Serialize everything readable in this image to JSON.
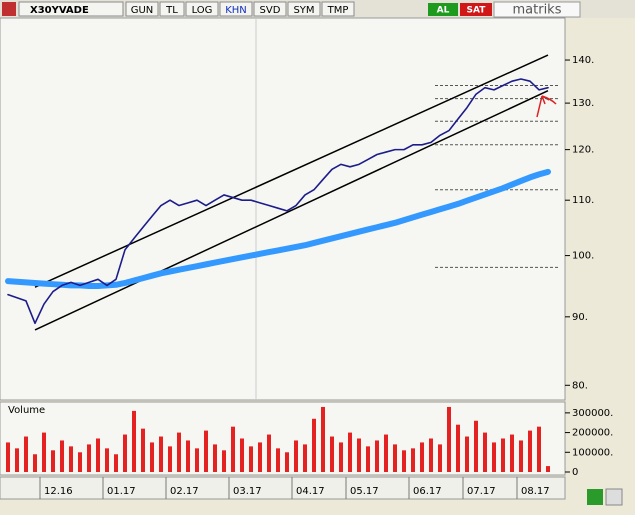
{
  "toolbar": {
    "symbol": "X30YVADE",
    "buttons": [
      "GUN",
      "TL",
      "LOG",
      "KHN",
      "SVD",
      "SYM",
      "TMP"
    ],
    "buy": "AL",
    "sell": "SAT",
    "brand": "matriks"
  },
  "chart_data": [
    {
      "type": "line",
      "log_scale": true,
      "categories": [
        null,
        null,
        null,
        null,
        "12.16",
        null,
        null,
        null,
        null,
        null,
        null,
        "01.17",
        null,
        null,
        null,
        null,
        null,
        null,
        "02.17",
        null,
        null,
        null,
        null,
        null,
        null,
        "03.17",
        null,
        null,
        null,
        null,
        null,
        null,
        "04.17",
        null,
        null,
        null,
        null,
        null,
        "05.17",
        null,
        null,
        null,
        null,
        null,
        null,
        "06.17",
        null,
        null,
        null,
        null,
        null,
        "07.17",
        null,
        null,
        null,
        null,
        null,
        "08.17",
        null,
        null,
        null
      ],
      "series": [
        {
          "color": "#1c1c8a",
          "width": 1.6,
          "values": [
            93.5,
            93,
            92.5,
            89,
            92,
            94,
            95,
            95.5,
            95,
            95.5,
            96,
            95,
            96,
            101,
            103,
            105,
            107,
            109,
            110,
            109,
            109.5,
            110,
            109,
            110,
            111,
            110.5,
            110,
            110,
            109.5,
            109,
            108.5,
            108,
            109,
            111,
            112,
            114,
            116,
            117,
            116.5,
            117,
            118,
            119,
            119.5,
            120,
            120,
            121,
            121,
            121.5,
            123,
            124,
            126.5,
            129,
            132,
            133.5,
            133,
            134,
            135,
            135.5,
            135,
            133,
            133.5
          ]
        },
        {
          "color": "#3399ff",
          "width": 6,
          "values": [
            95.7,
            95.6,
            95.5,
            95.4,
            95.3,
            95.2,
            95.1,
            95.0,
            95.0,
            94.9,
            94.9,
            95.0,
            95.1,
            95.4,
            95.8,
            96.2,
            96.6,
            97.0,
            97.3,
            97.6,
            97.9,
            98.2,
            98.5,
            98.8,
            99.1,
            99.4,
            99.7,
            100.0,
            100.3,
            100.6,
            100.9,
            101.2,
            101.5,
            101.8,
            102.2,
            102.6,
            103.0,
            103.4,
            103.8,
            104.2,
            104.6,
            105.0,
            105.4,
            105.8,
            106.3,
            106.8,
            107.3,
            107.8,
            108.3,
            108.8,
            109.3,
            109.9,
            110.5,
            111.1,
            111.7,
            112.3,
            113.0,
            113.7,
            114.4,
            115.0,
            115.5
          ]
        }
      ],
      "trend_lines": [
        {
          "x": [
            3,
            60
          ],
          "values": [
            94.7,
            141.2
          ]
        },
        {
          "x": [
            3,
            60
          ],
          "values": [
            88.0,
            132.8
          ]
        }
      ],
      "levels": [
        98,
        112,
        121,
        126,
        131,
        134
      ],
      "ylim": [
        78,
        150.5
      ],
      "yticks": [
        {
          "value": 80,
          "label": "80."
        },
        {
          "value": 90,
          "label": "90."
        },
        {
          "value": 100,
          "label": "100."
        },
        {
          "value": 110,
          "label": "110."
        },
        {
          "value": 120,
          "label": "120."
        },
        {
          "value": 130,
          "label": "130."
        },
        {
          "value": 140,
          "label": "140."
        }
      ]
    },
    {
      "type": "bar",
      "title": "Volume",
      "color": "#e52222",
      "values": [
        150000,
        120000,
        180000,
        90000,
        200000,
        110000,
        160000,
        130000,
        100000,
        140000,
        170000,
        120000,
        90000,
        190000,
        310000,
        220000,
        150000,
        180000,
        130000,
        200000,
        160000,
        120000,
        210000,
        140000,
        110000,
        230000,
        170000,
        130000,
        150000,
        190000,
        120000,
        100000,
        160000,
        140000,
        270000,
        330000,
        180000,
        150000,
        200000,
        170000,
        130000,
        160000,
        190000,
        140000,
        110000,
        120000,
        150000,
        170000,
        140000,
        330000,
        240000,
        180000,
        260000,
        200000,
        150000,
        170000,
        190000,
        160000,
        210000,
        230000,
        30000
      ],
      "ylim": [
        0,
        345000
      ],
      "yticks": [
        0,
        {
          "value": 100000,
          "label": "100000."
        },
        {
          "value": 200000,
          "label": "200000."
        },
        {
          "value": 300000,
          "label": "300000."
        }
      ]
    }
  ]
}
